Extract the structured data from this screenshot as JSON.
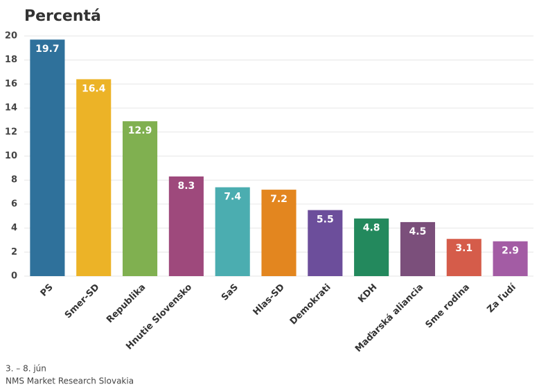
{
  "chart_data": {
    "type": "bar",
    "title": "Percentá",
    "categories": [
      "PS",
      "Smer-SD",
      "Republika",
      "Hnutie Slovensko",
      "SaS",
      "Hlas-SD",
      "Demokrati",
      "KDH",
      "Maďarská aliancia",
      "Sme rodina",
      "Za ľudí"
    ],
    "values": [
      19.7,
      16.4,
      12.9,
      8.3,
      7.4,
      7.2,
      5.5,
      4.8,
      4.5,
      3.1,
      2.9
    ],
    "colors": [
      "#2f719b",
      "#ecb327",
      "#80b050",
      "#9e497c",
      "#4badb0",
      "#e3861f",
      "#6c4e9b",
      "#23895d",
      "#7b4f7b",
      "#d55c4a",
      "#a35ca4"
    ],
    "ylim": [
      0,
      20
    ],
    "yticks": [
      0,
      2,
      4,
      6,
      8,
      10,
      12,
      14,
      16,
      18,
      20
    ],
    "grid": true,
    "notes": [
      "3. – 8. jún",
      "NMS Market Research Slovakia"
    ]
  }
}
